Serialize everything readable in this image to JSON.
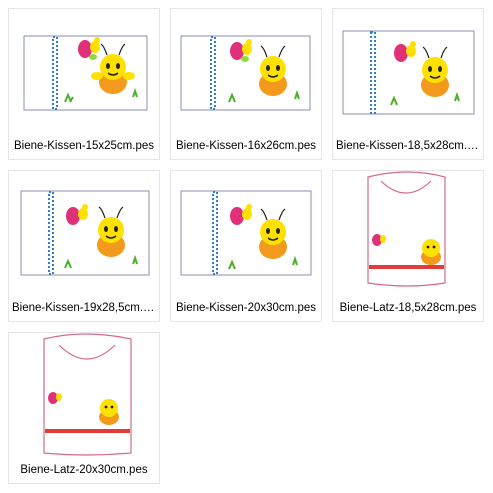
{
  "files": [
    {
      "name": "Biene-Kissen-15x25cm.pes",
      "type": "pillow"
    },
    {
      "name": "Biene-Kissen-16x26cm.pes",
      "type": "pillow"
    },
    {
      "name": "Biene-Kissen-18,5x28cm.p...",
      "type": "pillow"
    },
    {
      "name": "Biene-Kissen-19x28,5cm.p...",
      "type": "pillow"
    },
    {
      "name": "Biene-Kissen-20x30cm.pes",
      "type": "pillow"
    },
    {
      "name": "Biene-Latz-18,5x28cm.pes",
      "type": "bib"
    },
    {
      "name": "Biene-Latz-20x30cm.pes",
      "type": "bib"
    }
  ],
  "colors": {
    "tile_border": "#e6e6e6",
    "frame": "#8a8fb0",
    "border_stitch": "#2e7fd0",
    "bib_outline": "#d66a8a",
    "bib_band": "#e23b3b",
    "bee_yellow": "#ffe100",
    "bee_orange": "#f39a1c",
    "butterfly_pink": "#e0307a",
    "grass": "#4caf2a"
  }
}
